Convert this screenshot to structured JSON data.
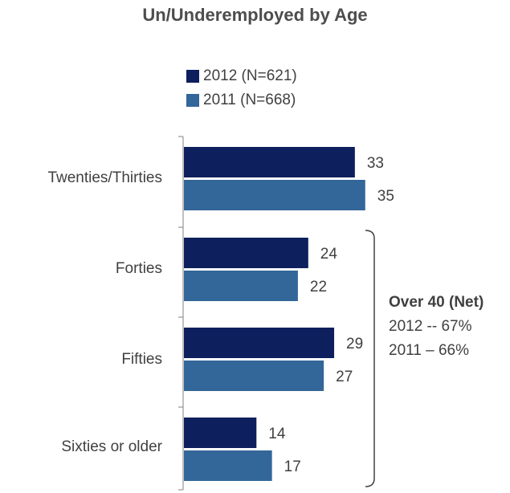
{
  "chart_data": {
    "type": "bar",
    "orientation": "horizontal",
    "title": "Un/Underemployed by Age",
    "categories": [
      "Twenties/Thirties",
      "Forties",
      "Fifties",
      "Sixties or older"
    ],
    "series": [
      {
        "name": "2012 (N=621)",
        "values": [
          33,
          24,
          29,
          14
        ],
        "color": "#0d1f5c"
      },
      {
        "name": "2011 (N=668)",
        "values": [
          35,
          22,
          27,
          17
        ],
        "color": "#336699"
      }
    ],
    "xlim": [
      0,
      50
    ],
    "grid": false,
    "legend": "top",
    "annotation": {
      "heading": "Over 40 (Net)",
      "line1": "2012 -- 67%",
      "line2": "2011 – 66%"
    }
  }
}
